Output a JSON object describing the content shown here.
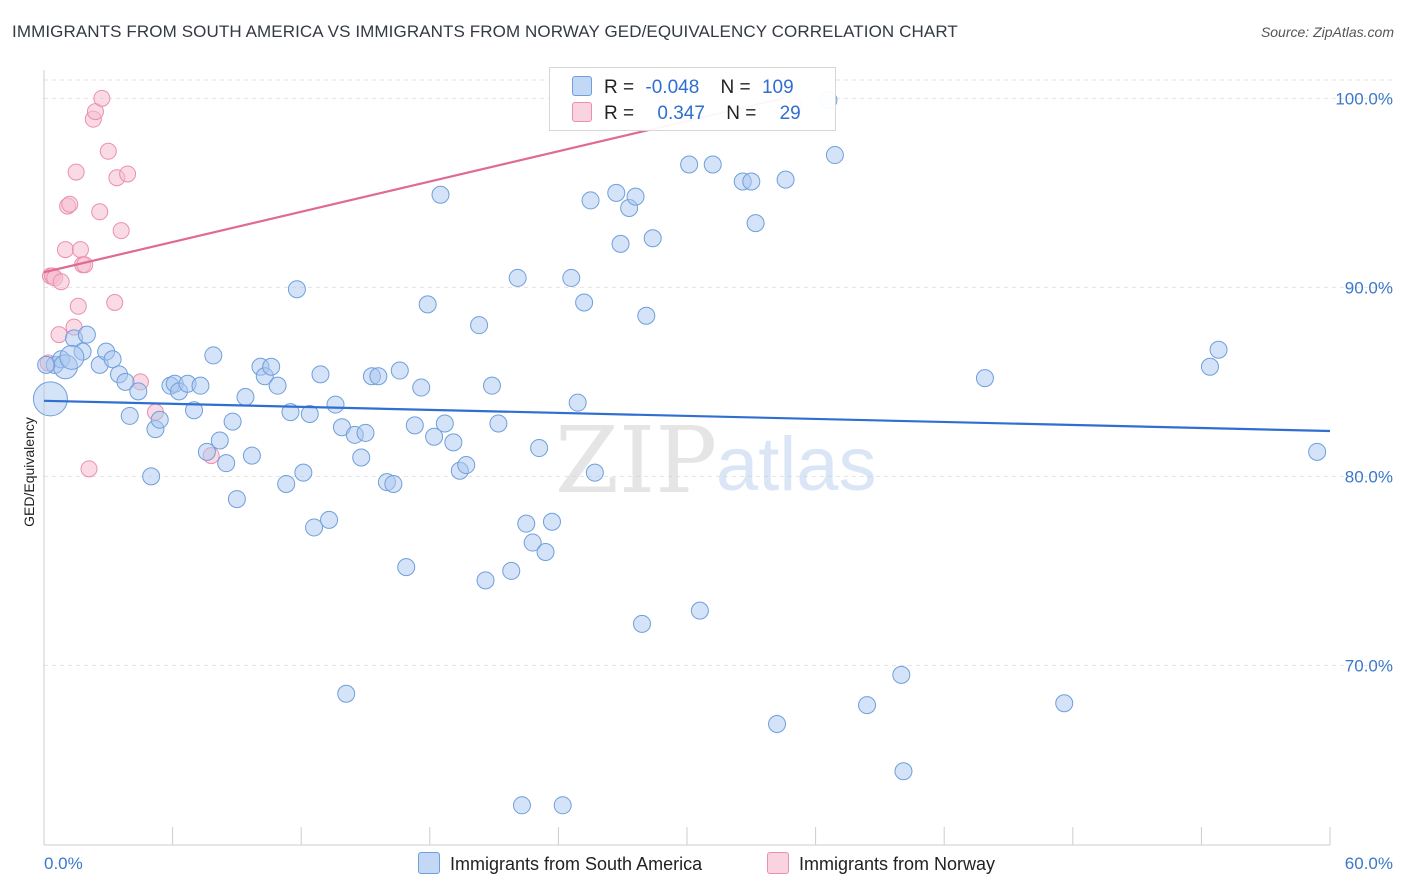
{
  "title": "IMMIGRANTS FROM SOUTH AMERICA VS IMMIGRANTS FROM NORWAY GED/EQUIVALENCY CORRELATION CHART",
  "source": "Source: ZipAtlas.com",
  "watermark": {
    "zip": "ZIP",
    "atlas": "atlas"
  },
  "colors": {
    "blue_fill": "#a9c8f0",
    "blue_stroke": "#6f9fdc",
    "blue_line": "#2f6fd0",
    "pink_fill": "#f6bdd0",
    "pink_stroke": "#ea8fb0",
    "pink_line": "#e06a95",
    "grid": "#e3e3e3",
    "tick_text": "#3b78c9"
  },
  "legend": {
    "row1": {
      "r_label": "R =",
      "r_value": "-0.048",
      "n_label": "N =",
      "n_value": "109"
    },
    "row2": {
      "r_label": "R =",
      "r_value": "0.347",
      "n_label": "N =",
      "n_value": "29"
    }
  },
  "chart_data": {
    "type": "scatter",
    "title": "IMMIGRANTS FROM SOUTH AMERICA VS IMMIGRANTS FROM NORWAY GED/EQUIVALENCY CORRELATION CHART",
    "xlabel": "",
    "ylabel": "GED/Equivalency",
    "xlim": [
      0,
      60
    ],
    "ylim": [
      60.5,
      101.5
    ],
    "x_tick_labels": [
      "0.0%",
      "60.0%"
    ],
    "y_tick_labels": [
      "70.0%",
      "80.0%",
      "90.0%",
      "100.0%"
    ],
    "y_ticks": [
      70,
      80,
      90,
      100
    ],
    "grid": true,
    "legend_position": "top-center",
    "series": [
      {
        "name": "Immigrants from South America",
        "color": "#a9c8f0",
        "trend": {
          "x": [
            0,
            60
          ],
          "y": [
            84.0,
            82.4
          ]
        },
        "points": [
          [
            0.3,
            84.1
          ],
          [
            0.5,
            85.9
          ],
          [
            0.8,
            86.2
          ],
          [
            1.0,
            85.8
          ],
          [
            1.4,
            87.3
          ],
          [
            1.8,
            86.6
          ],
          [
            2.0,
            87.5
          ],
          [
            2.6,
            85.9
          ],
          [
            2.9,
            86.6
          ],
          [
            3.2,
            86.2
          ],
          [
            3.5,
            85.4
          ],
          [
            3.8,
            85.0
          ],
          [
            4.0,
            83.2
          ],
          [
            4.4,
            84.5
          ],
          [
            5.0,
            80.0
          ],
          [
            5.2,
            82.5
          ],
          [
            5.4,
            83.0
          ],
          [
            5.9,
            84.8
          ],
          [
            6.1,
            84.9
          ],
          [
            6.3,
            84.5
          ],
          [
            6.7,
            84.9
          ],
          [
            7.0,
            83.5
          ],
          [
            7.3,
            84.8
          ],
          [
            7.6,
            81.3
          ],
          [
            7.9,
            86.4
          ],
          [
            8.2,
            81.9
          ],
          [
            8.5,
            80.7
          ],
          [
            8.8,
            82.9
          ],
          [
            9.0,
            78.8
          ],
          [
            9.4,
            84.2
          ],
          [
            9.7,
            81.1
          ],
          [
            10.1,
            85.8
          ],
          [
            10.3,
            85.3
          ],
          [
            10.6,
            85.8
          ],
          [
            10.9,
            84.8
          ],
          [
            11.3,
            79.6
          ],
          [
            11.5,
            83.4
          ],
          [
            11.8,
            89.9
          ],
          [
            12.1,
            80.2
          ],
          [
            12.4,
            83.3
          ],
          [
            12.6,
            77.3
          ],
          [
            12.9,
            85.4
          ],
          [
            13.3,
            77.7
          ],
          [
            13.6,
            83.8
          ],
          [
            13.9,
            82.6
          ],
          [
            14.1,
            68.5
          ],
          [
            14.5,
            82.2
          ],
          [
            14.8,
            81.0
          ],
          [
            15.0,
            82.3
          ],
          [
            15.3,
            85.3
          ],
          [
            15.6,
            85.3
          ],
          [
            16.0,
            79.7
          ],
          [
            16.3,
            79.6
          ],
          [
            16.6,
            85.6
          ],
          [
            16.9,
            75.2
          ],
          [
            17.3,
            82.7
          ],
          [
            17.6,
            84.7
          ],
          [
            17.9,
            89.1
          ],
          [
            18.2,
            82.1
          ],
          [
            18.5,
            94.9
          ],
          [
            18.7,
            82.8
          ],
          [
            19.1,
            81.8
          ],
          [
            19.4,
            80.3
          ],
          [
            19.7,
            80.6
          ],
          [
            20.3,
            88.0
          ],
          [
            20.6,
            74.5
          ],
          [
            20.9,
            84.8
          ],
          [
            21.2,
            82.8
          ],
          [
            21.8,
            75.0
          ],
          [
            22.1,
            90.5
          ],
          [
            22.3,
            62.6
          ],
          [
            22.5,
            77.5
          ],
          [
            22.8,
            76.5
          ],
          [
            23.1,
            81.5
          ],
          [
            23.4,
            76.0
          ],
          [
            23.7,
            77.6
          ],
          [
            24.2,
            62.6
          ],
          [
            24.6,
            90.5
          ],
          [
            24.9,
            83.9
          ],
          [
            25.2,
            89.2
          ],
          [
            25.5,
            94.6
          ],
          [
            25.7,
            80.2
          ],
          [
            26.7,
            95.0
          ],
          [
            26.9,
            92.3
          ],
          [
            27.3,
            94.2
          ],
          [
            27.6,
            94.8
          ],
          [
            27.9,
            72.2
          ],
          [
            28.1,
            88.5
          ],
          [
            28.4,
            92.6
          ],
          [
            30.1,
            96.5
          ],
          [
            30.6,
            72.9
          ],
          [
            31.2,
            96.5
          ],
          [
            32.6,
            95.6
          ],
          [
            33.0,
            95.6
          ],
          [
            33.2,
            93.4
          ],
          [
            34.2,
            66.9
          ],
          [
            34.6,
            95.7
          ],
          [
            36.6,
            99.9
          ],
          [
            36.9,
            97.0
          ],
          [
            38.4,
            67.9
          ],
          [
            40.0,
            69.5
          ],
          [
            40.1,
            64.4
          ],
          [
            43.9,
            85.2
          ],
          [
            47.6,
            68.0
          ],
          [
            54.4,
            85.8
          ],
          [
            54.8,
            86.7
          ],
          [
            59.4,
            81.3
          ],
          [
            0.1,
            85.9
          ],
          [
            1.3,
            86.3
          ]
        ]
      },
      {
        "name": "Immigrants from Norway",
        "color": "#f6bdd0",
        "trend": {
          "x": [
            0,
            34.5
          ],
          "y": [
            90.8,
            100.0
          ]
        },
        "points": [
          [
            0.3,
            90.6
          ],
          [
            0.4,
            90.6
          ],
          [
            0.5,
            90.5
          ],
          [
            0.7,
            87.5
          ],
          [
            0.8,
            90.3
          ],
          [
            1.0,
            92.0
          ],
          [
            1.1,
            94.3
          ],
          [
            1.2,
            94.4
          ],
          [
            1.4,
            87.9
          ],
          [
            1.5,
            96.1
          ],
          [
            1.6,
            89.0
          ],
          [
            1.7,
            92.0
          ],
          [
            1.8,
            91.2
          ],
          [
            2.1,
            80.4
          ],
          [
            2.3,
            98.9
          ],
          [
            2.4,
            99.3
          ],
          [
            2.6,
            94.0
          ],
          [
            2.7,
            100.0
          ],
          [
            3.0,
            97.2
          ],
          [
            3.3,
            89.2
          ],
          [
            3.4,
            95.8
          ],
          [
            3.6,
            93.0
          ],
          [
            3.9,
            96.0
          ],
          [
            4.5,
            85.0
          ],
          [
            5.2,
            83.4
          ],
          [
            7.8,
            81.1
          ],
          [
            35.0,
            99.6
          ],
          [
            0.2,
            86.0
          ],
          [
            1.9,
            91.2
          ]
        ]
      }
    ]
  },
  "bottom_legend": {
    "series1": "Immigrants from South America",
    "series2": "Immigrants from Norway"
  }
}
